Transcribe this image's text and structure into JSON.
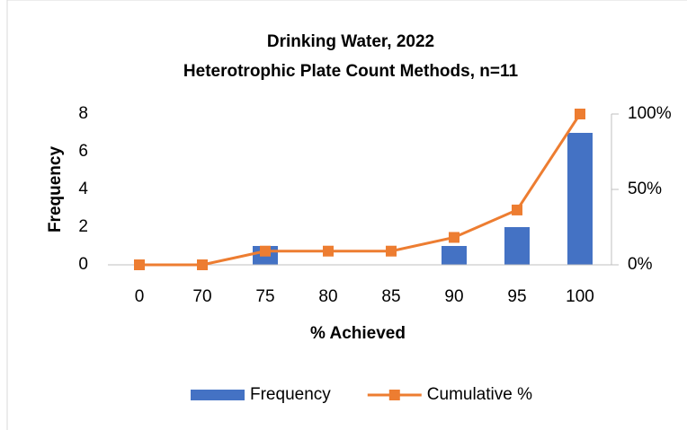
{
  "chart_data": {
    "type": "bar",
    "title": "Drinking Water, 2022",
    "subtitle": "Heterotrophic Plate Count Methods, n=11",
    "x_label": "% Achieved",
    "y_label": "Frequency",
    "categories": [
      "0",
      "70",
      "75",
      "80",
      "85",
      "90",
      "95",
      "100"
    ],
    "series": [
      {
        "name": "Frequency",
        "color": "#4472c4",
        "type": "bar",
        "values": [
          0,
          0,
          1,
          0,
          0,
          1,
          2,
          7
        ]
      },
      {
        "name": "Cumulative %",
        "color": "#ed7d31",
        "type": "line",
        "axis": "y2",
        "values": [
          0,
          0,
          9.09,
          9.09,
          9.09,
          18.18,
          36.36,
          100
        ]
      }
    ],
    "ylim": [
      0,
      8
    ],
    "yticks": [
      0,
      2,
      4,
      6,
      8
    ],
    "y2lim": [
      0,
      100
    ],
    "y2ticks": [
      {
        "value": 0,
        "label": "0%"
      },
      {
        "value": 50,
        "label": "50%"
      },
      {
        "value": 100,
        "label": "100%"
      }
    ],
    "grid": false,
    "legend": "bottom"
  }
}
